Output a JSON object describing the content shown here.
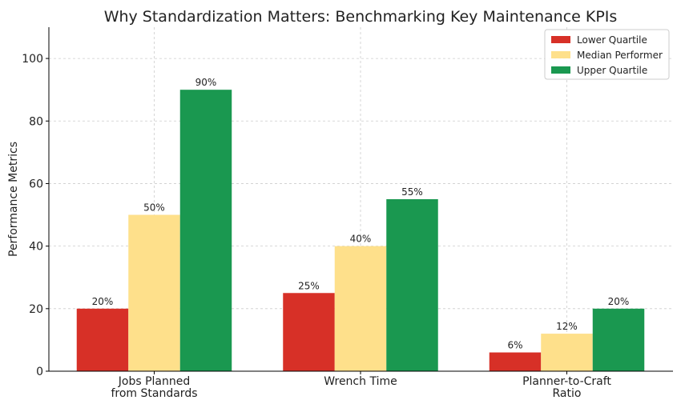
{
  "chart_data": {
    "type": "bar",
    "title": "Why Standardization Matters: Benchmarking Key Maintenance KPIs",
    "xlabel": "",
    "ylabel": "Performance Metrics",
    "ylim": [
      0,
      110
    ],
    "yticks": [
      0,
      20,
      40,
      60,
      80,
      100
    ],
    "grid": true,
    "legend_position": "top-right",
    "categories": [
      [
        "Jobs Planned",
        "from Standards"
      ],
      [
        "Wrench Time"
      ],
      [
        "Planner-to-Craft",
        "Ratio"
      ]
    ],
    "series": [
      {
        "name": "Lower Quartile",
        "color": "#d73027",
        "values": [
          20,
          25,
          6
        ],
        "labels": [
          "20%",
          "25%",
          "6%"
        ]
      },
      {
        "name": "Median Performer",
        "color": "#fee08b",
        "values": [
          50,
          40,
          12
        ],
        "labels": [
          "50%",
          "40%",
          "12%"
        ]
      },
      {
        "name": "Upper Quartile",
        "color": "#1a9850",
        "values": [
          90,
          55,
          20
        ],
        "labels": [
          "90%",
          "55%",
          "20%"
        ]
      }
    ]
  }
}
